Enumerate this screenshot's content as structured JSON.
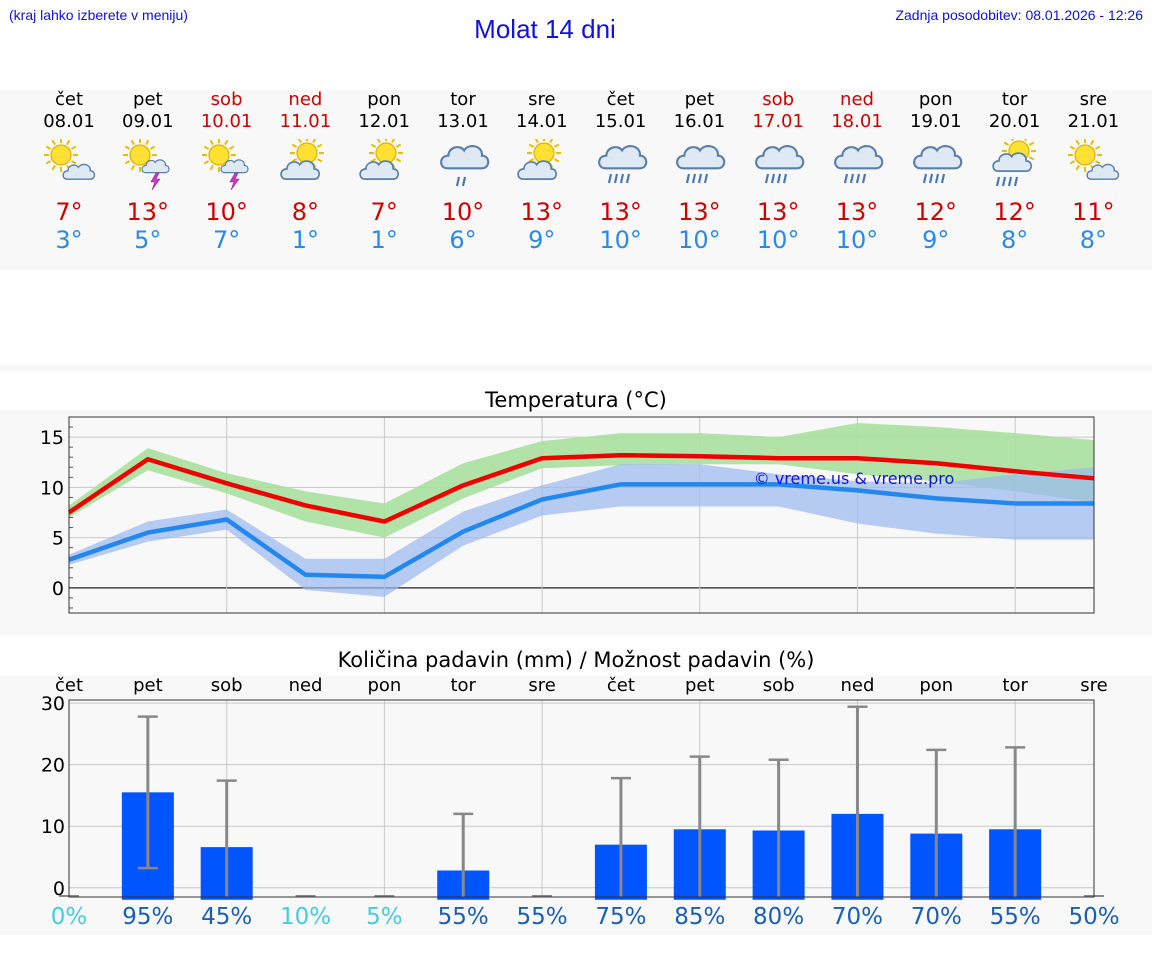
{
  "header": {
    "note": "(kraj lahko izberete v meniju)",
    "title": "Molat 14 dni",
    "updated": "Zadnja posodobitev: 08.01.2026 - 12:26"
  },
  "days": [
    {
      "name": "čet",
      "date": "08.01",
      "weekend": false,
      "icon": "sun-cloud-icon",
      "hi": "7°",
      "lo": "3°"
    },
    {
      "name": "pet",
      "date": "09.01",
      "weekend": false,
      "icon": "sun-storm-icon",
      "hi": "13°",
      "lo": "5°"
    },
    {
      "name": "sob",
      "date": "10.01",
      "weekend": true,
      "icon": "sun-storm-icon",
      "hi": "10°",
      "lo": "7°"
    },
    {
      "name": "ned",
      "date": "11.01",
      "weekend": true,
      "icon": "cloud-sun-icon",
      "hi": "8°",
      "lo": "1°"
    },
    {
      "name": "pon",
      "date": "12.01",
      "weekend": false,
      "icon": "cloud-sun-icon",
      "hi": "7°",
      "lo": "1°"
    },
    {
      "name": "tor",
      "date": "13.01",
      "weekend": false,
      "icon": "cloud-rain-icon",
      "hi": "10°",
      "lo": "6°"
    },
    {
      "name": "sre",
      "date": "14.01",
      "weekend": false,
      "icon": "cloud-sun-icon",
      "hi": "13°",
      "lo": "9°"
    },
    {
      "name": "čet",
      "date": "15.01",
      "weekend": false,
      "icon": "heavy-rain-icon",
      "hi": "13°",
      "lo": "10°"
    },
    {
      "name": "pet",
      "date": "16.01",
      "weekend": false,
      "icon": "heavy-rain-icon",
      "hi": "13°",
      "lo": "10°"
    },
    {
      "name": "sob",
      "date": "17.01",
      "weekend": true,
      "icon": "heavy-rain-icon",
      "hi": "13°",
      "lo": "10°"
    },
    {
      "name": "ned",
      "date": "18.01",
      "weekend": true,
      "icon": "heavy-rain-icon",
      "hi": "13°",
      "lo": "10°"
    },
    {
      "name": "pon",
      "date": "19.01",
      "weekend": false,
      "icon": "heavy-rain-icon",
      "hi": "12°",
      "lo": "9°"
    },
    {
      "name": "tor",
      "date": "20.01",
      "weekend": false,
      "icon": "sun-rain-icon",
      "hi": "12°",
      "lo": "8°"
    },
    {
      "name": "sre",
      "date": "21.01",
      "weekend": false,
      "icon": "sun-cloud-icon",
      "hi": "11°",
      "lo": "8°"
    }
  ],
  "colors": {
    "weekday": "#000000",
    "weekend": "#cc0000",
    "hi": "#cc0000",
    "lo": "#2a8ae8",
    "max_line": "#ee0000",
    "min_line": "#2288ee",
    "max_band": "#a8e0a0",
    "min_band": "#9ab8f0",
    "bar": "#0055ff",
    "whisker": "#888888",
    "pct_light": "#44cce0",
    "pct_dark": "#1a5fb4"
  },
  "chart_data": [
    {
      "type": "line",
      "title": "Temperatura (°C)",
      "watermark": "© vreme.us & vreme.pro",
      "x": [
        0,
        1,
        2,
        3,
        4,
        5,
        6,
        7,
        8,
        9,
        10,
        11,
        12,
        13
      ],
      "ylim": [
        -2.5,
        17
      ],
      "yticks": [
        0,
        5,
        10,
        15
      ],
      "series": [
        {
          "name": "max",
          "values": [
            7.5,
            12.8,
            10.4,
            8.2,
            6.6,
            10.2,
            12.9,
            13.2,
            13.1,
            12.9,
            12.9,
            12.4,
            11.6,
            10.9
          ],
          "band_low": [
            7.0,
            11.7,
            9.4,
            6.6,
            5.0,
            8.9,
            11.9,
            12.2,
            12.3,
            12.3,
            11.3,
            10.6,
            9.6,
            8.5
          ],
          "band_high": [
            8.2,
            13.9,
            11.4,
            9.6,
            8.4,
            12.4,
            14.6,
            15.4,
            15.4,
            15.0,
            16.4,
            16.0,
            15.4,
            14.7
          ]
        },
        {
          "name": "min",
          "values": [
            2.8,
            5.5,
            6.8,
            1.3,
            1.1,
            5.6,
            8.8,
            10.3,
            10.3,
            10.3,
            9.7,
            8.9,
            8.4,
            8.4
          ],
          "band_low": [
            2.3,
            4.6,
            5.8,
            -0.2,
            -0.9,
            4.2,
            7.2,
            8.1,
            8.1,
            8.1,
            6.4,
            5.4,
            4.8,
            4.8
          ],
          "band_high": [
            3.3,
            6.6,
            7.8,
            2.9,
            2.9,
            7.6,
            10.2,
            12.3,
            12.3,
            11.3,
            10.6,
            10.4,
            11.3,
            12.0
          ]
        }
      ]
    },
    {
      "type": "bar",
      "title": "Količina padavin (mm) / Možnost padavin (%)",
      "categories": [
        "čet",
        "pet",
        "sob",
        "ned",
        "pon",
        "tor",
        "sre",
        "čet",
        "pet",
        "sob",
        "ned",
        "pon",
        "tor",
        "sre"
      ],
      "values": [
        0,
        15.5,
        6.6,
        0,
        0,
        2.8,
        0,
        7.0,
        9.5,
        9.3,
        12.0,
        8.8,
        9.5,
        0
      ],
      "err_low": [
        0,
        3.2,
        0,
        0,
        0,
        0,
        0,
        0,
        0,
        0,
        0,
        0,
        0,
        0
      ],
      "err_high": [
        0,
        27.8,
        17.4,
        0,
        0,
        12.0,
        0,
        17.8,
        21.3,
        20.8,
        29.4,
        22.4,
        22.8,
        0
      ],
      "probability": [
        "0%",
        "95%",
        "45%",
        "10%",
        "5%",
        "55%",
        "55%",
        "75%",
        "85%",
        "80%",
        "70%",
        "70%",
        "55%",
        "50%"
      ],
      "ylim": [
        -1.5,
        30.5
      ],
      "yticks": [
        0,
        10,
        20,
        30
      ]
    }
  ]
}
